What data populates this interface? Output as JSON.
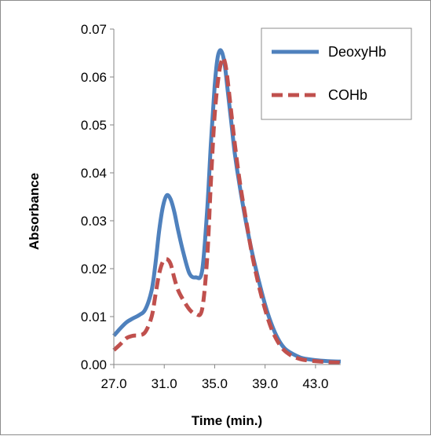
{
  "chart_data": {
    "type": "line",
    "title": "",
    "xlabel": "Time (min.)",
    "ylabel": "Absorbance",
    "xlim": [
      27.0,
      45.0
    ],
    "ylim": [
      0.0,
      0.07
    ],
    "x_ticks": [
      27.0,
      31.0,
      35.0,
      39.0,
      43.0
    ],
    "x_tick_labels": [
      "27.0",
      "31.0",
      "35.0",
      "39.0",
      "43.0"
    ],
    "y_ticks": [
      0.0,
      0.01,
      0.02,
      0.03,
      0.04,
      0.05,
      0.06,
      0.07
    ],
    "y_tick_labels": [
      "0.00",
      "0.01",
      "0.02",
      "0.03",
      "0.04",
      "0.05",
      "0.06",
      "0.07"
    ],
    "grid": false,
    "legend_position": "top-right",
    "series": [
      {
        "name": "DeoxyHb",
        "color": "#4f81bd",
        "style": "solid",
        "x": [
          27.0,
          27.5,
          28.0,
          28.5,
          29.0,
          29.5,
          30.0,
          30.3,
          30.6,
          30.9,
          31.2,
          31.5,
          31.8,
          32.1,
          32.5,
          33.0,
          33.5,
          34.0,
          34.4,
          34.7,
          35.0,
          35.2,
          35.4,
          35.6,
          35.8,
          36.0,
          36.3,
          36.6,
          37.0,
          37.5,
          38.0,
          38.5,
          39.0,
          39.5,
          40.0,
          40.5,
          41.0,
          41.5,
          42.0,
          43.0,
          44.0,
          45.0
        ],
        "values": [
          0.006,
          0.0075,
          0.0088,
          0.0096,
          0.0103,
          0.0115,
          0.0155,
          0.021,
          0.028,
          0.033,
          0.0353,
          0.0345,
          0.0318,
          0.028,
          0.0235,
          0.019,
          0.0182,
          0.0195,
          0.032,
          0.046,
          0.058,
          0.0635,
          0.0655,
          0.065,
          0.0625,
          0.058,
          0.051,
          0.044,
          0.037,
          0.0295,
          0.023,
          0.0175,
          0.0125,
          0.0085,
          0.0055,
          0.0035,
          0.0025,
          0.0018,
          0.0013,
          0.0009,
          0.0007,
          0.0006
        ]
      },
      {
        "name": "COHb",
        "color": "#c0504d",
        "style": "dashed",
        "x": [
          27.0,
          27.5,
          28.0,
          28.5,
          29.0,
          29.5,
          30.0,
          30.3,
          30.6,
          30.9,
          31.2,
          31.5,
          31.8,
          32.1,
          32.5,
          33.0,
          33.5,
          34.0,
          34.4,
          34.7,
          35.0,
          35.3,
          35.6,
          35.8,
          36.0,
          36.3,
          36.6,
          37.0,
          37.5,
          38.0,
          38.5,
          39.0,
          39.5,
          40.0,
          40.5,
          41.0,
          41.5,
          42.0,
          43.0,
          44.0,
          45.0
        ],
        "values": [
          0.003,
          0.0042,
          0.0055,
          0.006,
          0.0061,
          0.0068,
          0.01,
          0.0145,
          0.019,
          0.0215,
          0.022,
          0.021,
          0.018,
          0.0155,
          0.0135,
          0.0115,
          0.0105,
          0.0115,
          0.022,
          0.038,
          0.052,
          0.06,
          0.0638,
          0.0632,
          0.06,
          0.053,
          0.046,
          0.038,
          0.03,
          0.0225,
          0.0165,
          0.0115,
          0.0075,
          0.0048,
          0.003,
          0.002,
          0.0014,
          0.001,
          0.0007,
          0.0005,
          0.0004
        ]
      }
    ]
  }
}
